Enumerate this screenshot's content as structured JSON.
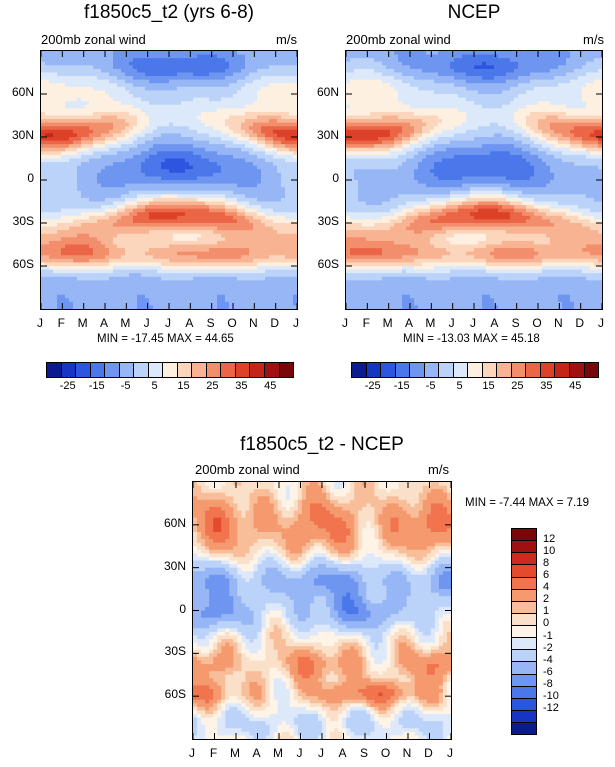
{
  "chart_data": [
    {
      "type": "heatmap",
      "title": "f1850c5_t2 (yrs 6-8)",
      "left_label": "200mb zonal wind",
      "right_label": "m/s",
      "stats_text": "MIN = -17.45 MAX =  44.65",
      "min": -17.45,
      "max": 44.65,
      "x_tick_labels": [
        "J",
        "F",
        "M",
        "A",
        "M",
        "J",
        "J",
        "A",
        "S",
        "O",
        "N",
        "D",
        "J"
      ],
      "y_tick_labels": [
        "60N",
        "30N",
        "0",
        "30S",
        "60S"
      ],
      "y_range": [
        -90,
        90
      ]
    },
    {
      "type": "heatmap",
      "title": "NCEP",
      "left_label": "200mb zonal wind",
      "right_label": "m/s",
      "stats_text": "MIN = -13.03 MAX =  45.18",
      "min": -13.03,
      "max": 45.18,
      "x_tick_labels": [
        "J",
        "F",
        "M",
        "A",
        "M",
        "J",
        "J",
        "A",
        "S",
        "O",
        "N",
        "D",
        "J"
      ],
      "y_tick_labels": [
        "60N",
        "30N",
        "0",
        "30S",
        "60S"
      ],
      "y_range": [
        -90,
        90
      ]
    },
    {
      "type": "heatmap",
      "title": "f1850c5_t2 - NCEP",
      "left_label": "200mb zonal wind",
      "right_label": "m/s",
      "stats_text": "MIN =  -7.44 MAX =   7.19",
      "min": -7.44,
      "max": 7.19,
      "x_tick_labels": [
        "J",
        "F",
        "M",
        "A",
        "M",
        "J",
        "J",
        "A",
        "S",
        "O",
        "N",
        "D",
        "J"
      ],
      "y_tick_labels": [
        "60N",
        "30N",
        "0",
        "30S",
        "60S"
      ],
      "y_range": [
        -90,
        90
      ]
    }
  ],
  "abs_colorbar": {
    "colors": [
      "#0b1b8f",
      "#1535c2",
      "#2c56e0",
      "#4a77ea",
      "#6e96f1",
      "#97b6f6",
      "#bcd3f9",
      "#dce9fb",
      "#fdf0e0",
      "#fbd6bc",
      "#f7b392",
      "#f28e6b",
      "#eb6647",
      "#dd4128",
      "#c42517",
      "#a11010",
      "#7a0707"
    ],
    "labels": [
      "-25",
      "-15",
      "-5",
      "5",
      "15",
      "25",
      "35",
      "45"
    ]
  },
  "diff_colorbar": {
    "colors": [
      "#7a0707",
      "#a11010",
      "#cc2a1b",
      "#e44a2c",
      "#f1744f",
      "#f5996f",
      "#f8be99",
      "#fbe0c9",
      "#fdf3e6",
      "#dde9fb",
      "#bcd3f9",
      "#97b6f6",
      "#6e96f1",
      "#4a77ea",
      "#2c56e0",
      "#1535c2",
      "#0b1b8f"
    ],
    "labels": [
      "12",
      "10",
      "8",
      "6",
      "4",
      "2",
      "1",
      "0",
      "-1",
      "-2",
      "-4",
      "-6",
      "-8",
      "-10",
      "-12"
    ]
  }
}
